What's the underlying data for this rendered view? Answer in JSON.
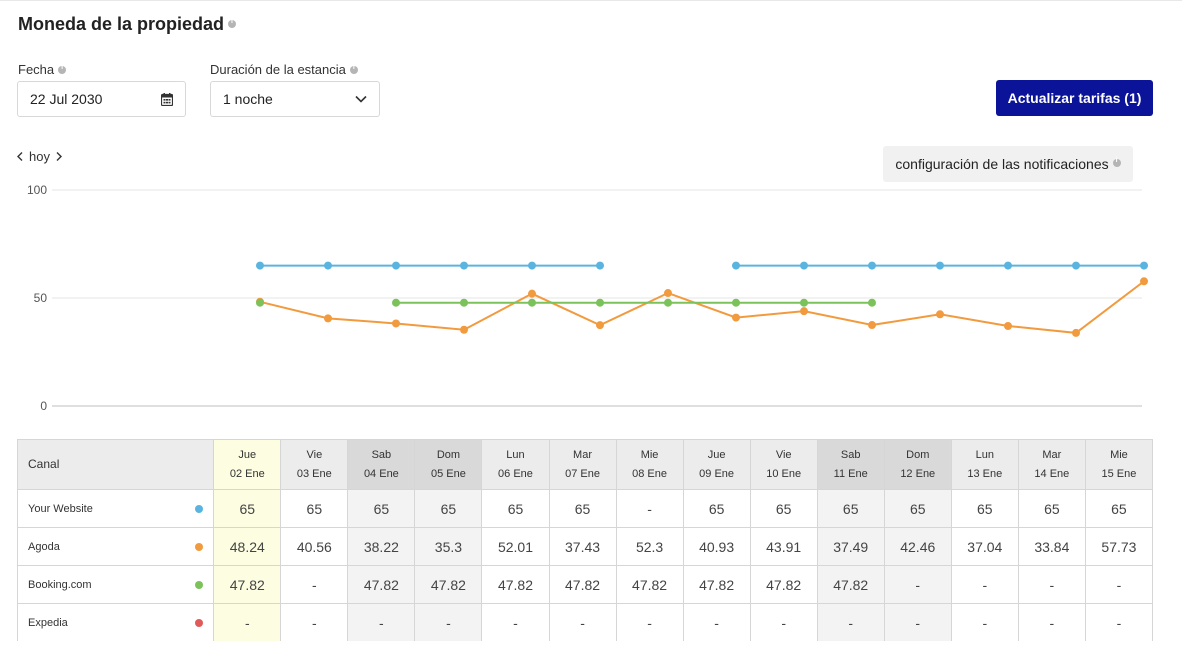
{
  "header": {
    "title": "Moneda de la propiedad"
  },
  "date_field": {
    "label": "Fecha",
    "value": "22 Jul 2030"
  },
  "stay_field": {
    "label": "Duración de la estancia",
    "value": "1 noche"
  },
  "update_button": {
    "label": "Actualizar tarifas (1)"
  },
  "nav": {
    "today_label": "hoy"
  },
  "notifications_button": {
    "label": "configuración de las notificaciones"
  },
  "colors": {
    "accent": "#0b1399",
    "your_website": "#5ab4e0",
    "agoda": "#f29a3e",
    "booking": "#7bc25a",
    "expedia": "#e05a5a"
  },
  "table": {
    "channel_header": "Canal",
    "days": [
      {
        "dow": "Jue",
        "date": "02 Ene",
        "kind": "today"
      },
      {
        "dow": "Vie",
        "date": "03 Ene",
        "kind": ""
      },
      {
        "dow": "Sab",
        "date": "04 Ene",
        "kind": "weekend"
      },
      {
        "dow": "Dom",
        "date": "05 Ene",
        "kind": "weekend"
      },
      {
        "dow": "Lun",
        "date": "06 Ene",
        "kind": ""
      },
      {
        "dow": "Mar",
        "date": "07 Ene",
        "kind": ""
      },
      {
        "dow": "Mie",
        "date": "08 Ene",
        "kind": ""
      },
      {
        "dow": "Jue",
        "date": "09 Ene",
        "kind": ""
      },
      {
        "dow": "Vie",
        "date": "10 Ene",
        "kind": ""
      },
      {
        "dow": "Sab",
        "date": "11 Ene",
        "kind": "weekend"
      },
      {
        "dow": "Dom",
        "date": "12 Ene",
        "kind": "weekend"
      },
      {
        "dow": "Lun",
        "date": "13 Ene",
        "kind": ""
      },
      {
        "dow": "Mar",
        "date": "14 Ene",
        "kind": ""
      },
      {
        "dow": "Mie",
        "date": "15 Ene",
        "kind": ""
      }
    ],
    "rows": [
      {
        "channel": "Your Website",
        "color": "#5ab4e0",
        "values": [
          "65",
          "65",
          "65",
          "65",
          "65",
          "65",
          "-",
          "65",
          "65",
          "65",
          "65",
          "65",
          "65",
          "65"
        ]
      },
      {
        "channel": "Agoda",
        "color": "#f29a3e",
        "values": [
          "48.24",
          "40.56",
          "38.22",
          "35.3",
          "52.01",
          "37.43",
          "52.3",
          "40.93",
          "43.91",
          "37.49",
          "42.46",
          "37.04",
          "33.84",
          "57.73"
        ]
      },
      {
        "channel": "Booking.com",
        "color": "#7bc25a",
        "values": [
          "47.82",
          "-",
          "47.82",
          "47.82",
          "47.82",
          "47.82",
          "47.82",
          "47.82",
          "47.82",
          "47.82",
          "-",
          "-",
          "-",
          "-"
        ]
      },
      {
        "channel": "Expedia",
        "color": "#e05a5a",
        "values": [
          "-",
          "-",
          "-",
          "-",
          "-",
          "-",
          "-",
          "-",
          "-",
          "-",
          "-",
          "-",
          "-",
          "-"
        ]
      }
    ]
  },
  "chart_data": {
    "type": "line",
    "x": [
      "02 Ene",
      "03 Ene",
      "04 Ene",
      "05 Ene",
      "06 Ene",
      "07 Ene",
      "08 Ene",
      "09 Ene",
      "10 Ene",
      "11 Ene",
      "12 Ene",
      "13 Ene",
      "14 Ene",
      "15 Ene"
    ],
    "yticks": [
      0,
      50,
      100
    ],
    "ylim": [
      0,
      100
    ],
    "series": [
      {
        "name": "Your Website",
        "color": "#5ab4e0",
        "values": [
          65,
          65,
          65,
          65,
          65,
          65,
          null,
          65,
          65,
          65,
          65,
          65,
          65,
          65
        ]
      },
      {
        "name": "Agoda",
        "color": "#f29a3e",
        "values": [
          48.24,
          40.56,
          38.22,
          35.3,
          52.01,
          37.43,
          52.3,
          40.93,
          43.91,
          37.49,
          42.46,
          37.04,
          33.84,
          57.73
        ]
      },
      {
        "name": "Booking.com",
        "color": "#7bc25a",
        "values": [
          47.82,
          null,
          47.82,
          47.82,
          47.82,
          47.82,
          47.82,
          47.82,
          47.82,
          47.82,
          null,
          null,
          null,
          null
        ]
      }
    ]
  }
}
